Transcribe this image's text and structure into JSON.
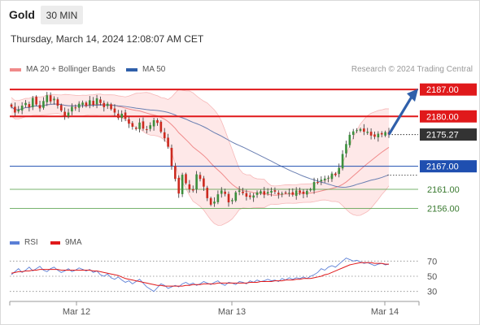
{
  "header": {
    "instrument": "Gold",
    "timeframe": "30 MIN",
    "datetime": "Thursday, March 14, 2024 12:08:07 AM CET",
    "source": "Research © 2024 Trading Central"
  },
  "colors": {
    "resistance": "#e0191b",
    "support": "#1f4fb0",
    "support_minor": "#4a9a3e",
    "last_price_bg": "#333333",
    "ma20": "#f08a8a",
    "bollinger_fill": "#fde0e0",
    "ma50": "#6a7fb2",
    "candle_up": "#3d8f3d",
    "candle_down": "#cc2a1f",
    "rsi": "#5b7fd6",
    "rsi_ma": "#e0191b",
    "arrow": "#2f5faa"
  },
  "chart_data": [
    {
      "type": "candlestick",
      "legend": [
        {
          "label": "MA 20 + Bollinger Bands",
          "color": "#f08a8a"
        },
        {
          "label": "MA 50",
          "color": "#2f5faa"
        }
      ],
      "x_ticks": [
        "Mar 12",
        "Mar 13",
        "Mar 14"
      ],
      "ylim": [
        2150,
        2190
      ],
      "price_levels": [
        {
          "value": 2187.0,
          "label": "2187.00",
          "kind": "resistance"
        },
        {
          "value": 2180.0,
          "label": "2180.00",
          "kind": "resistance"
        },
        {
          "value": 2175.27,
          "label": "2175.27",
          "kind": "last"
        },
        {
          "value": 2167.0,
          "label": "2167.00",
          "kind": "support"
        },
        {
          "value": 2161.0,
          "label": "2161.00",
          "kind": "support_minor"
        },
        {
          "value": 2156.0,
          "label": "2156.00",
          "kind": "support_minor"
        }
      ],
      "closes": [
        2182.5,
        2181.0,
        2181.7,
        2182.8,
        2183.5,
        2182.4,
        2184.8,
        2183.1,
        2182.1,
        2184.0,
        2185.5,
        2183.9,
        2184.6,
        2182.8,
        2181.5,
        2180.0,
        2181.0,
        2182.5,
        2182.1,
        2183.3,
        2183.6,
        2182.7,
        2184.2,
        2183.0,
        2184.7,
        2183.5,
        2182.4,
        2183.3,
        2181.9,
        2181.0,
        2179.6,
        2180.7,
        2179.4,
        2178.1,
        2177.3,
        2176.7,
        2178.4,
        2176.8,
        2176.6,
        2177.7,
        2179.0,
        2178.3,
        2176.0,
        2174.3,
        2172.1,
        2167.1,
        2163.7,
        2159.9,
        2164.8,
        2162.6,
        2161.0,
        2160.7,
        2164.9,
        2163.7,
        2161.7,
        2158.7,
        2157.0,
        2157.8,
        2159.7,
        2160.7,
        2159.8,
        2157.6,
        2158.2,
        2160.2,
        2160.7,
        2160.0,
        2159.1,
        2159.0,
        2159.4,
        2160.2,
        2160.5,
        2159.6,
        2160.3,
        2160.6,
        2160.4,
        2159.7,
        2159.9,
        2160.1,
        2160.1,
        2159.6,
        2160.7,
        2160.1,
        2159.8,
        2160.6,
        2161.0,
        2162.9,
        2162.8,
        2163.5,
        2163.8,
        2164.0,
        2165.1,
        2164.7,
        2166.6,
        2170.2,
        2172.8,
        2175.2,
        2176.1,
        2176.4,
        2176.7,
        2176.0,
        2176.0,
        2175.0,
        2174.7,
        2175.5,
        2175.3,
        2175.9,
        2175.27
      ],
      "rsi": {
        "legend": [
          {
            "label": "RSI",
            "color": "#5b7fd6"
          },
          {
            "label": "9MA",
            "color": "#e0191b"
          }
        ],
        "levels": [
          70,
          50,
          30
        ],
        "ylim": [
          20,
          80
        ],
        "values": [
          52,
          56,
          60,
          55,
          58,
          62,
          57,
          60,
          63,
          58,
          56,
          60,
          62,
          58,
          55,
          57,
          60,
          56,
          58,
          61,
          59,
          57,
          59,
          55,
          57,
          52,
          50,
          53,
          48,
          46,
          49,
          45,
          42,
          44,
          40,
          43,
          46,
          41,
          36,
          33,
          30,
          35,
          40,
          38,
          34,
          36,
          38,
          36,
          40,
          42,
          39,
          41,
          38,
          40,
          43,
          41,
          39,
          42,
          44,
          40,
          38,
          42,
          41,
          39,
          43,
          42,
          40,
          44,
          42,
          45,
          43,
          44,
          46,
          44,
          45,
          43,
          47,
          45,
          48,
          46,
          48,
          47,
          49,
          47,
          50,
          52,
          55,
          60,
          58,
          62,
          64,
          62,
          66,
          70,
          74,
          72,
          70,
          71,
          69,
          67,
          68,
          66,
          64,
          66,
          67,
          65,
          66
        ],
        "ma9": [
          54,
          55,
          56,
          56,
          57,
          57,
          58,
          58,
          59,
          59,
          59,
          59,
          59,
          59,
          58,
          58,
          58,
          58,
          58,
          58,
          58,
          58,
          58,
          57,
          57,
          56,
          55,
          54,
          53,
          52,
          51,
          49,
          47,
          46,
          45,
          44,
          43,
          42,
          41,
          40,
          39,
          38,
          38,
          37,
          37,
          37,
          37,
          37,
          37,
          38,
          38,
          39,
          39,
          39,
          40,
          40,
          40,
          40,
          41,
          41,
          41,
          41,
          41,
          41,
          41,
          41,
          41,
          42,
          42,
          42,
          43,
          43,
          43,
          43,
          44,
          44,
          44,
          45,
          45,
          45,
          46,
          46,
          47,
          47,
          47,
          48,
          49,
          50,
          52,
          53,
          55,
          57,
          59,
          61,
          63,
          65,
          66,
          67,
          68,
          68,
          68,
          68,
          67,
          67,
          67,
          66,
          66
        ]
      }
    }
  ]
}
